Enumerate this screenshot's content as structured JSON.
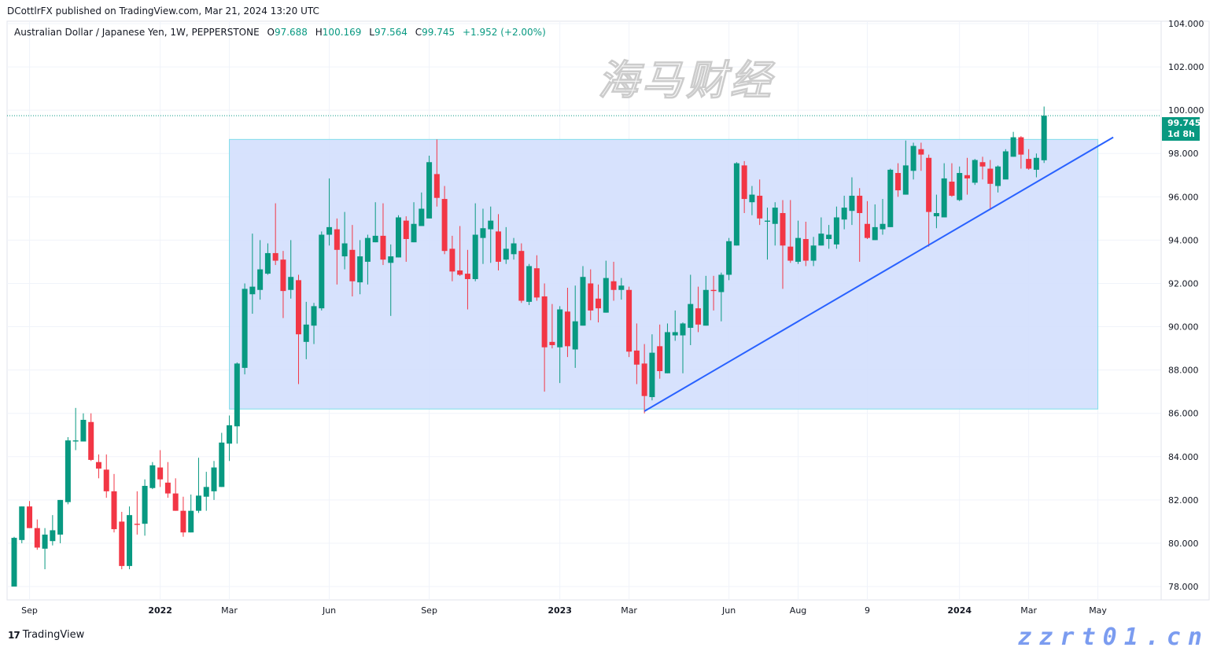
{
  "header": {
    "published": "DCottlrFX published on TradingView.com, Mar 21, 2024 13:20 UTC"
  },
  "legend": {
    "symbol": "Australian Dollar / Japanese Yen, 1W, PEPPERSTONE",
    "o_label": "O",
    "o": "97.688",
    "h_label": "H",
    "h": "100.169",
    "l_label": "L",
    "l": "97.564",
    "c_label": "C",
    "c": "99.745",
    "change": "+1.952 (+2.00%)"
  },
  "price_tag": {
    "price": "99.745",
    "countdown": "1d 8h"
  },
  "footer": {
    "brand": "TradingView",
    "logo_icon": "tradingview-logo-icon"
  },
  "watermark": {
    "text": "海马财经",
    "url": "zzrt01.cn"
  },
  "colors": {
    "up": "#089981",
    "down": "#F23645",
    "trendline": "#2962FF",
    "range_fill": "#D3DFFD",
    "range_border": "#80DEEA"
  },
  "chart_data": {
    "type": "candlestick",
    "interval": "1W",
    "first_candle_date": "2021-08-23",
    "current_price": 99.745,
    "ylim": [
      77.6,
      104.1
    ],
    "y_ticks": [
      "78.000",
      "80.000",
      "82.000",
      "84.000",
      "86.000",
      "88.000",
      "90.000",
      "92.000",
      "94.000",
      "96.000",
      "98.000",
      "100.000",
      "102.000",
      "104.000"
    ],
    "x_ticks": [
      {
        "label": "Sep",
        "date": "2021-09-06"
      },
      {
        "label": "2022",
        "date": "2022-01-03"
      },
      {
        "label": "Mar",
        "date": "2022-03-07"
      },
      {
        "label": "Jun",
        "date": "2022-06-06"
      },
      {
        "label": "Sep",
        "date": "2022-09-05"
      },
      {
        "label": "2023",
        "date": "2023-01-02"
      },
      {
        "label": "Mar",
        "date": "2023-03-06"
      },
      {
        "label": "Jun",
        "date": "2023-06-05"
      },
      {
        "label": "Aug",
        "date": "2023-08-07"
      },
      {
        "label": "9",
        "date": "2023-10-09"
      },
      {
        "label": "2024",
        "date": "2024-01-01"
      },
      {
        "label": "Mar",
        "date": "2024-03-04"
      },
      {
        "label": "May",
        "date": "2024-05-06"
      }
    ],
    "ohlc": [
      [
        78.0,
        80.3,
        78.0,
        80.25
      ],
      [
        80.15,
        81.7,
        80.0,
        81.7
      ],
      [
        81.7,
        81.95,
        80.7,
        80.7
      ],
      [
        80.7,
        81.1,
        79.7,
        79.8
      ],
      [
        79.75,
        80.7,
        78.8,
        80.4
      ],
      [
        80.1,
        81.3,
        79.9,
        80.6
      ],
      [
        80.4,
        82.0,
        80.0,
        82.0
      ],
      [
        81.9,
        84.9,
        81.8,
        84.75
      ],
      [
        84.7,
        86.25,
        84.3,
        84.75
      ],
      [
        84.7,
        86.0,
        84.7,
        85.7
      ],
      [
        85.6,
        86.0,
        83.8,
        83.85
      ],
      [
        83.75,
        84.1,
        83.0,
        83.45
      ],
      [
        83.4,
        84.1,
        82.1,
        82.4
      ],
      [
        82.4,
        83.2,
        80.5,
        80.65
      ],
      [
        81.0,
        81.45,
        78.8,
        78.95
      ],
      [
        78.95,
        81.7,
        78.8,
        81.3
      ],
      [
        80.9,
        82.4,
        80.4,
        80.85
      ],
      [
        80.9,
        82.95,
        80.35,
        82.65
      ],
      [
        82.55,
        83.75,
        82.5,
        83.6
      ],
      [
        83.5,
        84.3,
        82.6,
        82.95
      ],
      [
        82.8,
        83.75,
        82.1,
        82.3
      ],
      [
        82.3,
        83.0,
        81.5,
        81.5
      ],
      [
        81.5,
        82.15,
        80.3,
        80.5
      ],
      [
        80.5,
        82.25,
        80.5,
        81.5
      ],
      [
        81.5,
        83.95,
        81.4,
        82.2
      ],
      [
        82.15,
        83.3,
        81.5,
        82.6
      ],
      [
        82.4,
        83.8,
        82.0,
        83.5
      ],
      [
        82.6,
        85.1,
        82.6,
        84.65
      ],
      [
        84.6,
        85.9,
        83.8,
        85.45
      ],
      [
        85.4,
        88.35,
        84.6,
        88.3
      ],
      [
        88.1,
        92.0,
        87.8,
        91.75
      ],
      [
        91.5,
        94.3,
        90.6,
        91.85
      ],
      [
        91.7,
        94.0,
        91.25,
        92.65
      ],
      [
        92.45,
        93.85,
        92.4,
        93.4
      ],
      [
        93.4,
        95.7,
        92.85,
        93.05
      ],
      [
        93.1,
        93.5,
        90.4,
        91.65
      ],
      [
        91.7,
        94.0,
        91.3,
        92.3
      ],
      [
        92.15,
        92.4,
        87.35,
        89.65
      ],
      [
        89.3,
        91.15,
        88.5,
        90.1
      ],
      [
        90.05,
        91.1,
        89.2,
        90.95
      ],
      [
        90.85,
        94.4,
        90.75,
        94.25
      ],
      [
        94.25,
        96.85,
        93.75,
        94.6
      ],
      [
        94.5,
        95.0,
        91.95,
        93.55
      ],
      [
        93.25,
        95.3,
        92.65,
        93.85
      ],
      [
        93.55,
        94.7,
        91.4,
        92.1
      ],
      [
        92.05,
        94.0,
        91.5,
        93.25
      ],
      [
        93.0,
        94.25,
        91.95,
        94.1
      ],
      [
        93.9,
        95.75,
        93.9,
        94.2
      ],
      [
        94.2,
        95.7,
        92.85,
        93.1
      ],
      [
        92.95,
        93.8,
        90.5,
        93.25
      ],
      [
        93.2,
        95.15,
        93.2,
        95.05
      ],
      [
        94.9,
        95.1,
        93.0,
        94.05
      ],
      [
        93.9,
        95.75,
        93.9,
        94.75
      ],
      [
        94.65,
        96.2,
        94.65,
        95.45
      ],
      [
        95.0,
        97.9,
        95.0,
        97.6
      ],
      [
        97.05,
        98.65,
        95.55,
        95.95
      ],
      [
        95.9,
        96.5,
        93.35,
        93.5
      ],
      [
        93.6,
        94.2,
        92.1,
        92.55
      ],
      [
        92.6,
        94.65,
        92.35,
        92.4
      ],
      [
        92.45,
        93.55,
        90.8,
        92.2
      ],
      [
        92.2,
        95.7,
        92.1,
        94.25
      ],
      [
        94.1,
        95.45,
        92.9,
        94.55
      ],
      [
        94.5,
        95.55,
        92.95,
        94.9
      ],
      [
        94.4,
        95.2,
        92.6,
        93.0
      ],
      [
        93.1,
        94.6,
        92.9,
        93.6
      ],
      [
        93.35,
        94.1,
        93.1,
        93.85
      ],
      [
        93.5,
        93.85,
        91.1,
        91.2
      ],
      [
        91.15,
        92.9,
        91.0,
        92.8
      ],
      [
        92.7,
        93.3,
        91.2,
        91.35
      ],
      [
        91.4,
        92.0,
        87.0,
        89.05
      ],
      [
        89.3,
        91.05,
        89.0,
        89.15
      ],
      [
        89.05,
        90.95,
        87.4,
        90.8
      ],
      [
        90.7,
        91.8,
        88.6,
        89.1
      ],
      [
        88.95,
        91.9,
        88.1,
        90.25
      ],
      [
        90.05,
        92.8,
        90.05,
        92.3
      ],
      [
        92.0,
        92.65,
        90.3,
        90.75
      ],
      [
        91.3,
        91.95,
        90.2,
        90.85
      ],
      [
        90.65,
        93.05,
        90.65,
        92.25
      ],
      [
        92.1,
        93.0,
        91.2,
        91.7
      ],
      [
        91.7,
        92.25,
        91.25,
        91.9
      ],
      [
        91.7,
        91.85,
        88.6,
        88.85
      ],
      [
        88.9,
        90.15,
        87.35,
        88.25
      ],
      [
        88.3,
        89.2,
        86.0,
        86.8
      ],
      [
        86.75,
        89.65,
        86.6,
        88.8
      ],
      [
        89.1,
        90.1,
        87.6,
        87.95
      ],
      [
        87.85,
        90.15,
        87.85,
        89.75
      ],
      [
        89.6,
        90.75,
        89.35,
        89.75
      ],
      [
        89.6,
        90.2,
        87.85,
        90.15
      ],
      [
        89.95,
        92.4,
        89.15,
        91.05
      ],
      [
        90.85,
        91.85,
        89.75,
        90.1
      ],
      [
        90.05,
        92.35,
        90.05,
        91.7
      ],
      [
        91.7,
        92.35,
        90.75,
        91.65
      ],
      [
        91.6,
        92.5,
        90.25,
        92.4
      ],
      [
        92.4,
        94.1,
        92.15,
        93.95
      ],
      [
        93.75,
        97.6,
        93.75,
        97.55
      ],
      [
        97.45,
        97.65,
        95.25,
        95.9
      ],
      [
        95.75,
        96.5,
        95.15,
        96.1
      ],
      [
        96.05,
        96.8,
        94.7,
        95.0
      ],
      [
        94.85,
        95.5,
        93.1,
        94.9
      ],
      [
        94.75,
        95.75,
        93.75,
        95.5
      ],
      [
        95.25,
        95.85,
        91.75,
        93.75
      ],
      [
        93.7,
        95.85,
        92.95,
        93.05
      ],
      [
        93.0,
        94.9,
        92.9,
        94.1
      ],
      [
        94.05,
        94.85,
        92.8,
        93.05
      ],
      [
        93.05,
        94.15,
        92.8,
        93.75
      ],
      [
        93.75,
        95.05,
        93.75,
        94.3
      ],
      [
        94.05,
        94.7,
        93.6,
        94.25
      ],
      [
        93.8,
        95.55,
        93.6,
        95.05
      ],
      [
        94.95,
        96.05,
        94.5,
        95.5
      ],
      [
        95.35,
        96.9,
        94.7,
        96.05
      ],
      [
        96.05,
        96.4,
        93.0,
        95.25
      ],
      [
        94.75,
        95.8,
        94.05,
        94.1
      ],
      [
        94.0,
        95.65,
        94.0,
        94.6
      ],
      [
        94.5,
        95.9,
        94.25,
        94.75
      ],
      [
        94.6,
        97.3,
        94.6,
        97.25
      ],
      [
        97.1,
        97.55,
        96.0,
        96.3
      ],
      [
        96.1,
        98.6,
        96.1,
        97.45
      ],
      [
        97.2,
        98.5,
        96.8,
        98.35
      ],
      [
        98.2,
        98.5,
        97.2,
        97.95
      ],
      [
        97.8,
        97.95,
        93.7,
        95.3
      ],
      [
        95.1,
        96.1,
        94.55,
        95.25
      ],
      [
        95.05,
        97.55,
        95.05,
        96.85
      ],
      [
        96.7,
        97.55,
        96.0,
        96.05
      ],
      [
        95.85,
        97.4,
        95.8,
        97.1
      ],
      [
        97.0,
        97.8,
        96.1,
        96.85
      ],
      [
        96.65,
        97.75,
        96.55,
        97.7
      ],
      [
        97.6,
        97.85,
        96.8,
        97.4
      ],
      [
        97.3,
        97.7,
        95.45,
        96.6
      ],
      [
        96.5,
        97.45,
        96.2,
        97.4
      ],
      [
        96.8,
        98.2,
        97.0,
        98.1
      ],
      [
        97.85,
        99.0,
        97.85,
        98.75
      ],
      [
        98.75,
        98.8,
        97.3,
        97.95
      ],
      [
        97.75,
        98.2,
        97.25,
        97.3
      ],
      [
        97.25,
        98.0,
        96.9,
        97.8
      ],
      [
        97.688,
        100.169,
        97.564,
        99.745
      ]
    ],
    "drawings": {
      "range_rectangle": {
        "top": 98.65,
        "bottom": 86.2,
        "start_date": "2022-03-07",
        "end_date": "2024-05-06"
      },
      "trendline": {
        "start": {
          "date": "2023-03-20",
          "price": 86.1
        },
        "end": {
          "date": "2024-05-20",
          "price": 98.75
        }
      }
    }
  }
}
